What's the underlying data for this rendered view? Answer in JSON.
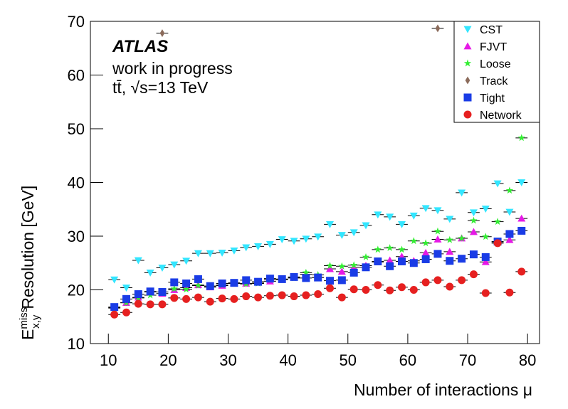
{
  "chart_data": {
    "type": "scatter",
    "annotations": {
      "experiment": "ATLAS",
      "status": "work in progress",
      "process": "tt̄, √s=13 TeV"
    },
    "x_label": "Number of interactions μ",
    "y_label": {
      "symbol": "E",
      "superscript": "miss",
      "subscript": "x,y",
      "text": "Resolution [GeV]"
    },
    "x": [
      11,
      13,
      15,
      17,
      19,
      21,
      23,
      25,
      27,
      29,
      31,
      33,
      35,
      37,
      39,
      41,
      43,
      45,
      47,
      49,
      51,
      53,
      55,
      57,
      59,
      61,
      63,
      65,
      67,
      69,
      71,
      73,
      75,
      77,
      79
    ],
    "xlim": [
      7,
      82
    ],
    "xticks": [
      10,
      20,
      30,
      40,
      50,
      60,
      70,
      80
    ],
    "ylim": [
      10,
      70
    ],
    "yticks": [
      10,
      20,
      30,
      40,
      50,
      60,
      70
    ],
    "grid": false,
    "legend": "top-right",
    "series": [
      {
        "name": "CST",
        "color": "#33e6ff",
        "marker": "triangle-down",
        "values": [
          21.9,
          20.4,
          25.5,
          23.2,
          24.1,
          24.7,
          25.4,
          26.8,
          26.8,
          26.9,
          27.3,
          27.9,
          28.1,
          28.5,
          29.4,
          29.1,
          29.5,
          29.9,
          32.2,
          30.2,
          30.7,
          32.0,
          34.0,
          33.6,
          32.2,
          33.8,
          35.2,
          34.8,
          33.2,
          38.1,
          34.4,
          35.1,
          39.8,
          34.5,
          40.0
        ]
      },
      {
        "name": "FJVT",
        "color": "#e619e6",
        "marker": "triangle-up",
        "values": [
          16.7,
          17.6,
          18.6,
          19.6,
          19.3,
          20.0,
          20.4,
          20.9,
          20.5,
          20.8,
          21.2,
          21.2,
          21.4,
          21.6,
          21.9,
          22.3,
          22.9,
          22.3,
          23.9,
          23.4,
          24.2,
          24.5,
          25.2,
          25.5,
          26.2,
          25.4,
          26.9,
          29.4,
          27.1,
          29.6,
          30.8,
          25.2,
          28.9,
          29.3,
          33.3
        ]
      },
      {
        "name": "Loose",
        "color": "#33ee33",
        "marker": "star",
        "values": [
          16.6,
          17.6,
          18.5,
          19.0,
          19.6,
          20.2,
          20.1,
          20.8,
          20.7,
          20.9,
          21.2,
          21.1,
          21.2,
          21.9,
          22.0,
          22.2,
          23.2,
          22.8,
          24.5,
          24.4,
          24.6,
          26.1,
          27.5,
          27.8,
          27.5,
          29.1,
          28.7,
          30.9,
          29.3,
          29.6,
          32.9,
          29.9,
          32.7,
          38.5,
          48.3
        ]
      },
      {
        "name": "Track",
        "color": "#8b6b5b",
        "marker": "diamond",
        "values": [
          null,
          null,
          null,
          null,
          67.8,
          null,
          null,
          null,
          null,
          null,
          null,
          null,
          null,
          null,
          null,
          null,
          null,
          null,
          null,
          null,
          null,
          null,
          null,
          null,
          null,
          null,
          null,
          68.7,
          null,
          null,
          null,
          null,
          null,
          null,
          null
        ]
      },
      {
        "name": "Tight",
        "color": "#1a3ce6",
        "marker": "square",
        "values": [
          16.8,
          18.3,
          19.2,
          19.7,
          19.6,
          21.4,
          21.2,
          22.0,
          20.7,
          21.2,
          21.3,
          21.8,
          21.5,
          22.1,
          22.0,
          22.4,
          22.2,
          22.3,
          21.7,
          21.8,
          23.2,
          24.2,
          25.3,
          24.4,
          25.3,
          25.0,
          25.7,
          26.7,
          25.4,
          25.8,
          26.6,
          26.1,
          29.0,
          30.4,
          31.0
        ]
      },
      {
        "name": "Network",
        "color": "#e62020",
        "marker": "circle",
        "values": [
          15.4,
          15.8,
          17.4,
          17.3,
          17.3,
          18.5,
          18.3,
          18.6,
          17.8,
          18.4,
          18.3,
          18.8,
          18.6,
          18.9,
          19.0,
          18.8,
          19.0,
          19.2,
          20.3,
          18.6,
          20.1,
          20.0,
          20.9,
          19.9,
          20.5,
          20.0,
          21.4,
          21.8,
          20.6,
          21.8,
          22.9,
          19.4,
          28.7,
          19.5,
          23.4
        ]
      }
    ]
  }
}
